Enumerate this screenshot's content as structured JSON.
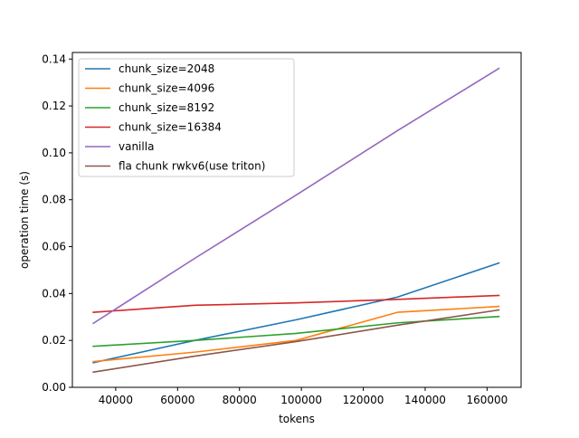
{
  "chart_data": {
    "type": "line",
    "title": "",
    "xlabel": "tokens",
    "ylabel": "operation time (s)",
    "xlim": [
      26000,
      171000
    ],
    "ylim": [
      0,
      0.1428
    ],
    "xticks": [
      40000,
      60000,
      80000,
      100000,
      120000,
      140000,
      160000
    ],
    "xtick_labels": [
      "40000",
      "60000",
      "80000",
      "100000",
      "120000",
      "140000",
      "160000"
    ],
    "yticks": [
      0.0,
      0.02,
      0.04,
      0.06,
      0.08,
      0.1,
      0.12,
      0.14
    ],
    "ytick_labels": [
      "0.00",
      "0.02",
      "0.04",
      "0.06",
      "0.08",
      "0.10",
      "0.12",
      "0.14"
    ],
    "grid": false,
    "legend_position": "top-left",
    "x": [
      32768,
      65536,
      98304,
      131072,
      163840
    ],
    "series": [
      {
        "name": "chunk_size=2048",
        "color": "#1f77b4",
        "values": [
          0.0105,
          0.02,
          0.0288,
          0.0385,
          0.053
        ]
      },
      {
        "name": "chunk_size=4096",
        "color": "#ff7f0e",
        "values": [
          0.011,
          0.015,
          0.02,
          0.032,
          0.0345
        ]
      },
      {
        "name": "chunk_size=8192",
        "color": "#2ca02c",
        "values": [
          0.0175,
          0.02,
          0.023,
          0.0275,
          0.0302
        ]
      },
      {
        "name": "chunk_size=16384",
        "color": "#d62728",
        "values": [
          0.032,
          0.035,
          0.036,
          0.0375,
          0.0392
        ]
      },
      {
        "name": "vanilla",
        "color": "#9467bd",
        "values": [
          0.0273,
          0.055,
          0.082,
          0.1095,
          0.136
        ]
      },
      {
        "name": "fla chunk rwkv6(use triton)",
        "color": "#8c564b",
        "values": [
          0.0065,
          0.0133,
          0.0195,
          0.0265,
          0.033
        ]
      }
    ]
  }
}
